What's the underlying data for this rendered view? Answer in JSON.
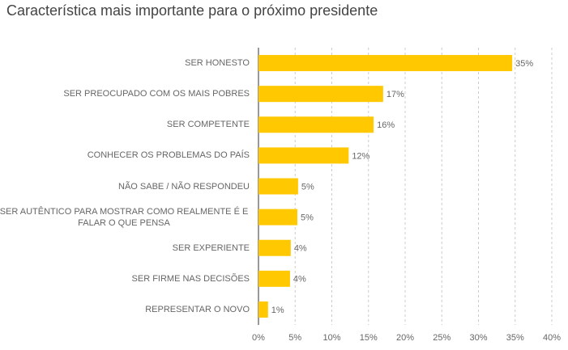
{
  "chart_data": {
    "type": "bar",
    "orientation": "horizontal",
    "title": "Característica mais importante para o próximo presidente",
    "categories": [
      "SER HONESTO",
      "SER PREOCUPADO COM OS MAIS POBRES",
      "SER COMPETENTE",
      "CONHECER OS PROBLEMAS DO PAÍS",
      "NÃO SABE / NÃO RESPONDEU",
      "SER AUTÊNTICO PARA MOSTRAR COMO REALMENTE É E FALAR O QUE PENSA",
      "SER EXPERIENTE",
      "SER FIRME NAS DECISÕES",
      "REPRESENTAR O NOVO"
    ],
    "values": [
      34.6,
      17,
      15.7,
      12.3,
      5.4,
      5.3,
      4.4,
      4.3,
      1.3
    ],
    "value_labels": [
      "35%",
      "17%",
      "16%",
      "12%",
      "5%",
      "5%",
      "4%",
      "4%",
      "1%"
    ],
    "color": "#ffc800",
    "xlim": [
      0,
      40
    ],
    "xticks": [
      {
        "value": 0,
        "label": "0%"
      },
      {
        "value": 5,
        "label": "5%"
      },
      {
        "value": 10,
        "label": "10%"
      },
      {
        "value": 15,
        "label": "15%"
      },
      {
        "value": 20,
        "label": "20%"
      },
      {
        "value": 25,
        "label": "25%"
      },
      {
        "value": 30,
        "label": "30%"
      },
      {
        "value": 35,
        "label": "35%"
      },
      {
        "value": 40,
        "label": "40%"
      }
    ],
    "grid": true
  }
}
